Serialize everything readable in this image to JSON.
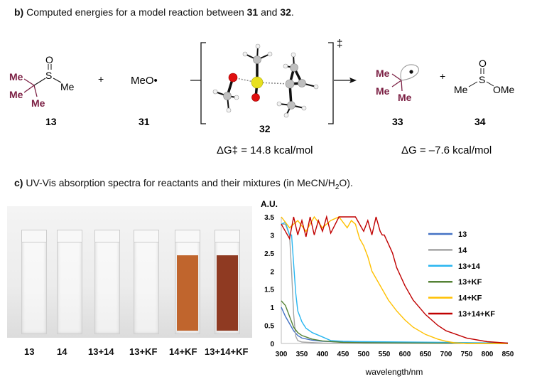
{
  "section_b": {
    "prefix": "b)",
    "title_parts": [
      "Computed energies for a model reaction between ",
      "31",
      " and ",
      "32",
      "."
    ]
  },
  "scheme": {
    "compound_13": {
      "label": "13",
      "O": "O",
      "S": "S",
      "Me": "Me",
      "tBu_Me": [
        "Me",
        "Me",
        "Me"
      ]
    },
    "plus_1": "+",
    "compound_31": {
      "label": "31",
      "formula": "MeO•"
    },
    "compound_32": {
      "label": "32",
      "dagger": "‡"
    },
    "dG_ts": "ΔG‡ = 14.8 kcal/mol",
    "compound_33": {
      "label": "33",
      "tBu_Me": [
        "Me",
        "Me",
        "Me"
      ]
    },
    "plus_2": "+",
    "compound_34": {
      "label": "34",
      "O": "O",
      "S": "S",
      "Me": "Me",
      "OMe": "OMe"
    },
    "dG_rxn": "ΔG = –7.6 kcal/mol",
    "colors": {
      "tert_butyl": "#7b1f43",
      "sulfur": "#e8e020",
      "oxygen": "#e01010",
      "carbon": "#bfbfbf",
      "hydrogen": "#f2f2f2"
    }
  },
  "section_c": {
    "prefix": "c)",
    "title_main": "UV-Vis absorption spectra for reactants and their mixtures (in MeCN/H",
    "title_sub": "2",
    "title_end": "O)."
  },
  "photo": {
    "samples": [
      {
        "label": "13",
        "color": "#ffffff00"
      },
      {
        "label": "14",
        "color": "#ffffff00"
      },
      {
        "label": "13+14",
        "color": "#ffffff00"
      },
      {
        "label": "13+KF",
        "color": "#ffffff00"
      },
      {
        "label": "14+KF",
        "color": "#c0652d"
      },
      {
        "label": "13+14+KF",
        "color": "#8f3a22"
      }
    ]
  },
  "chart_data": {
    "type": "line",
    "title": "",
    "ylabel": "A.U.",
    "xlabel": "wavelength/nm",
    "xlim": [
      300,
      850
    ],
    "ylim": [
      0,
      3.5
    ],
    "xticks": [
      300,
      350,
      400,
      450,
      500,
      550,
      600,
      650,
      700,
      750,
      800,
      850
    ],
    "yticks": [
      "0",
      "0.5",
      "1",
      "1.5",
      "2",
      "2.5",
      "3",
      "3.5"
    ],
    "grid": false,
    "legend": "right",
    "series": [
      {
        "name": "13",
        "color": "#4472c4",
        "x": [
          300,
          310,
          320,
          330,
          340,
          350,
          375,
          400,
          450,
          500,
          600,
          700,
          850
        ],
        "y": [
          1.0,
          0.75,
          0.55,
          0.35,
          0.22,
          0.15,
          0.09,
          0.06,
          0.04,
          0.03,
          0.03,
          0.02,
          0.01
        ]
      },
      {
        "name": "14",
        "color": "#a5a5a5",
        "x": [
          300,
          310,
          320,
          325,
          330,
          335,
          340,
          350,
          400,
          850
        ],
        "y": [
          3.3,
          3.3,
          3.0,
          2.0,
          0.8,
          0.2,
          0.08,
          0.04,
          0.01,
          0
        ]
      },
      {
        "name": "13+14",
        "color": "#29b6f0",
        "x": [
          300,
          310,
          320,
          325,
          330,
          335,
          340,
          350,
          360,
          375,
          400,
          420,
          450,
          500,
          600,
          700,
          850
        ],
        "y": [
          3.3,
          3.35,
          3.0,
          3.0,
          2.2,
          1.4,
          0.9,
          0.6,
          0.42,
          0.3,
          0.18,
          0.08,
          0.06,
          0.05,
          0.04,
          0.03,
          0.01
        ]
      },
      {
        "name": "13+KF",
        "color": "#548235",
        "x": [
          300,
          310,
          320,
          330,
          340,
          350,
          375,
          400,
          450,
          500,
          850
        ],
        "y": [
          1.18,
          1.05,
          0.75,
          0.45,
          0.3,
          0.22,
          0.12,
          0.07,
          0.03,
          0.02,
          0
        ]
      },
      {
        "name": "14+KF",
        "color": "#ffc000",
        "x": [
          300,
          320,
          340,
          360,
          380,
          400,
          420,
          440,
          460,
          470,
          480,
          490,
          500,
          510,
          520,
          540,
          560,
          580,
          600,
          620,
          650,
          680,
          700,
          720,
          750,
          850
        ],
        "y": [
          3.5,
          3.2,
          3.4,
          3.1,
          3.5,
          3.2,
          3.4,
          3.5,
          3.2,
          3.4,
          3.3,
          2.9,
          2.7,
          2.4,
          2.0,
          1.6,
          1.2,
          0.9,
          0.65,
          0.45,
          0.25,
          0.12,
          0.06,
          0.02,
          0,
          0
        ]
      },
      {
        "name": "13+14+KF",
        "color": "#c00000",
        "x": [
          300,
          310,
          320,
          330,
          340,
          350,
          360,
          370,
          380,
          390,
          400,
          410,
          420,
          440,
          460,
          480,
          500,
          510,
          520,
          530,
          540,
          545,
          550,
          560,
          570,
          580,
          600,
          620,
          650,
          680,
          700,
          750,
          800,
          850
        ],
        "y": [
          3.3,
          3.1,
          2.9,
          3.5,
          3.0,
          3.4,
          2.95,
          3.5,
          3.0,
          3.4,
          3.1,
          3.5,
          3.05,
          3.5,
          3.5,
          3.5,
          3.1,
          3.4,
          3.0,
          3.5,
          3.1,
          3.0,
          3.0,
          2.75,
          2.5,
          2.1,
          1.6,
          1.2,
          0.8,
          0.5,
          0.35,
          0.15,
          0.05,
          0.01
        ]
      }
    ]
  }
}
